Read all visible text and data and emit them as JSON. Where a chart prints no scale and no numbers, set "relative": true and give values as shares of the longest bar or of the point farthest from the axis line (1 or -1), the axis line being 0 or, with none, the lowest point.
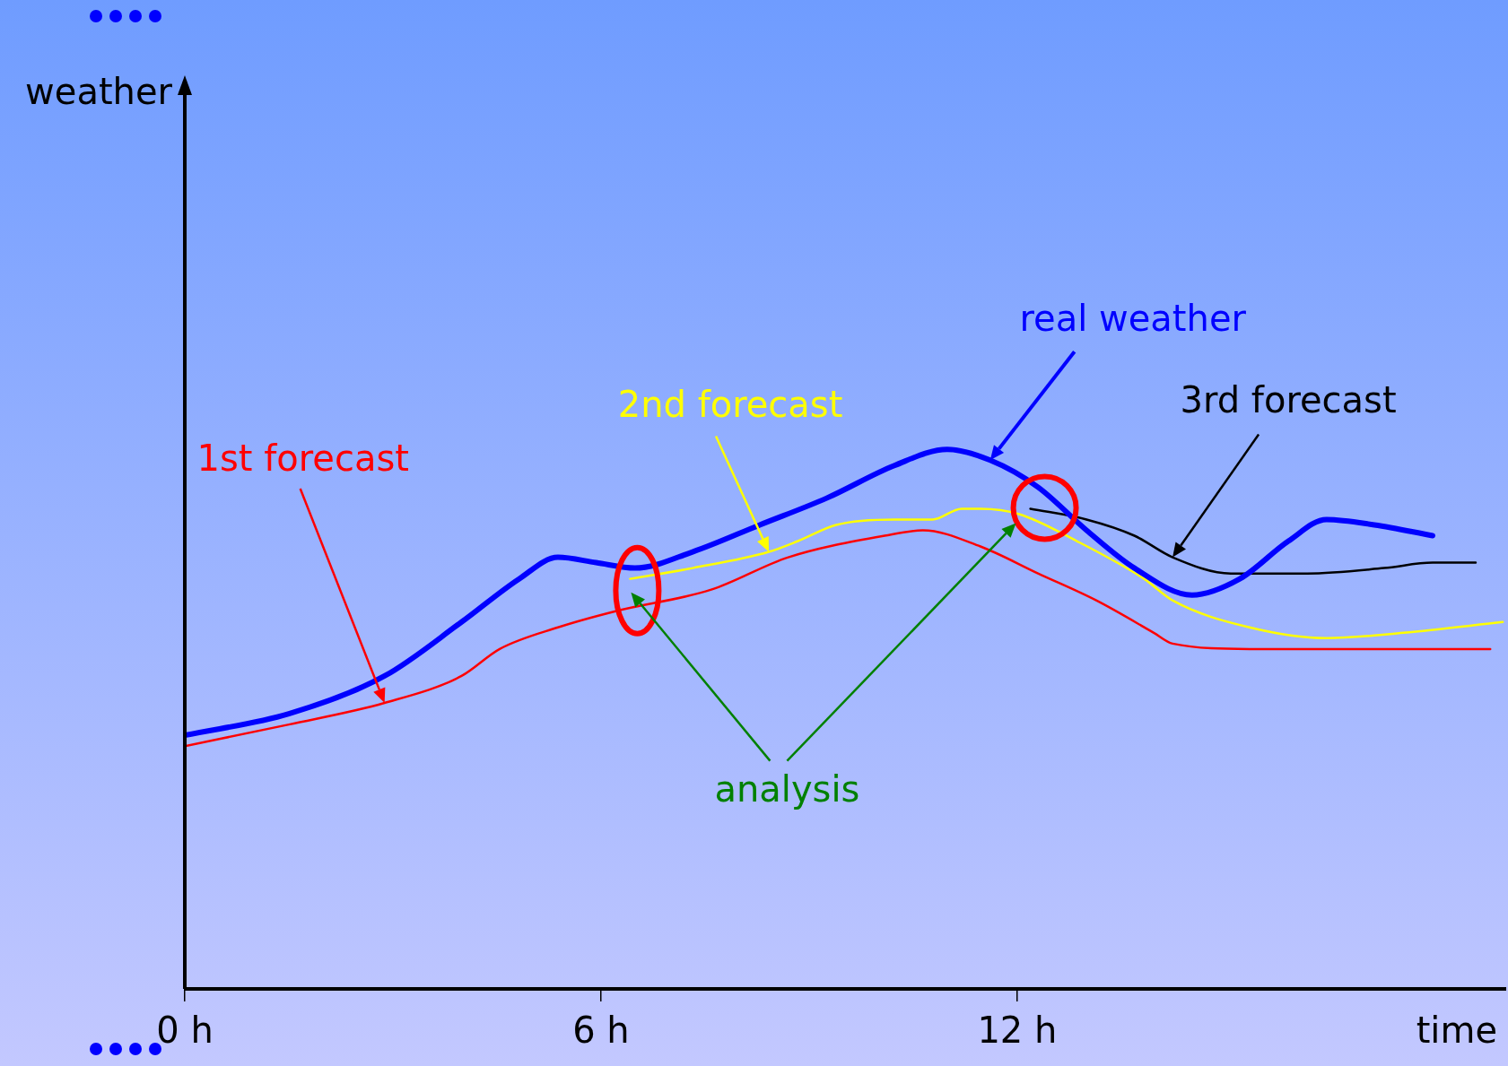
{
  "chart_data": {
    "type": "line",
    "relative": true,
    "xlabel": "time",
    "xlim": [
      0,
      19.05
    ],
    "xticks": [
      {
        "value": 0,
        "label": "0 h"
      },
      {
        "value": 6,
        "label": "6 h"
      },
      {
        "value": 12,
        "label": "12 h"
      }
    ],
    "grid": false,
    "legend": false,
    "marker": "none",
    "line_style": "solid",
    "series": [
      {
        "name": "real weather",
        "color": "#0000ff",
        "x": [
          0,
          1.5,
          2.88,
          3.99,
          4.82,
          5.38,
          5.93,
          6.49,
          7.32,
          8.29,
          9.26,
          10.23,
          10.99,
          11.61,
          12.3,
          13.0,
          13.69,
          14.52,
          15.21,
          15.91,
          16.46,
          17.15,
          17.99
        ],
        "values": [
          0.47,
          0.51,
          0.58,
          0.68,
          0.76,
          0.8,
          0.79,
          0.78,
          0.81,
          0.86,
          0.91,
          0.97,
          1.0,
          0.98,
          0.93,
          0.85,
          0.78,
          0.73,
          0.76,
          0.83,
          0.87,
          0.86,
          0.84
        ]
      },
      {
        "name": "1st forecast",
        "color": "#ff0000",
        "x": [
          0,
          1.5,
          2.88,
          3.99,
          4.54,
          5.38,
          6.21,
          7.59,
          8.7,
          10.09,
          10.64,
          11.47,
          12.3,
          13.14,
          13.97,
          14.24,
          15.35,
          16.74,
          18.82
        ],
        "values": [
          0.45,
          0.49,
          0.53,
          0.58,
          0.63,
          0.67,
          0.7,
          0.74,
          0.8,
          0.84,
          0.85,
          0.82,
          0.77,
          0.72,
          0.66,
          0.64,
          0.63,
          0.63,
          0.63
        ]
      },
      {
        "name": "2nd forecast",
        "color": "#ffff00",
        "x": [
          6.42,
          7.32,
          8.42,
          8.84,
          9.39,
          10.23,
          10.78,
          11.2,
          11.47,
          12.03,
          12.86,
          13.83,
          14.24,
          15.35,
          16.46,
          17.57,
          19.0
        ],
        "values": [
          0.76,
          0.78,
          0.81,
          0.83,
          0.86,
          0.87,
          0.87,
          0.89,
          0.89,
          0.88,
          0.83,
          0.76,
          0.72,
          0.67,
          0.65,
          0.66,
          0.68
        ]
      },
      {
        "name": "3rd forecast",
        "color": "#000000",
        "x": [
          12.19,
          13.0,
          13.69,
          14.24,
          15.08,
          16.18,
          17.29,
          17.99,
          18.61
        ],
        "values": [
          0.89,
          0.87,
          0.84,
          0.8,
          0.77,
          0.77,
          0.78,
          0.79,
          0.79
        ]
      }
    ],
    "annotations": [
      "analysis",
      "weather"
    ]
  }
}
